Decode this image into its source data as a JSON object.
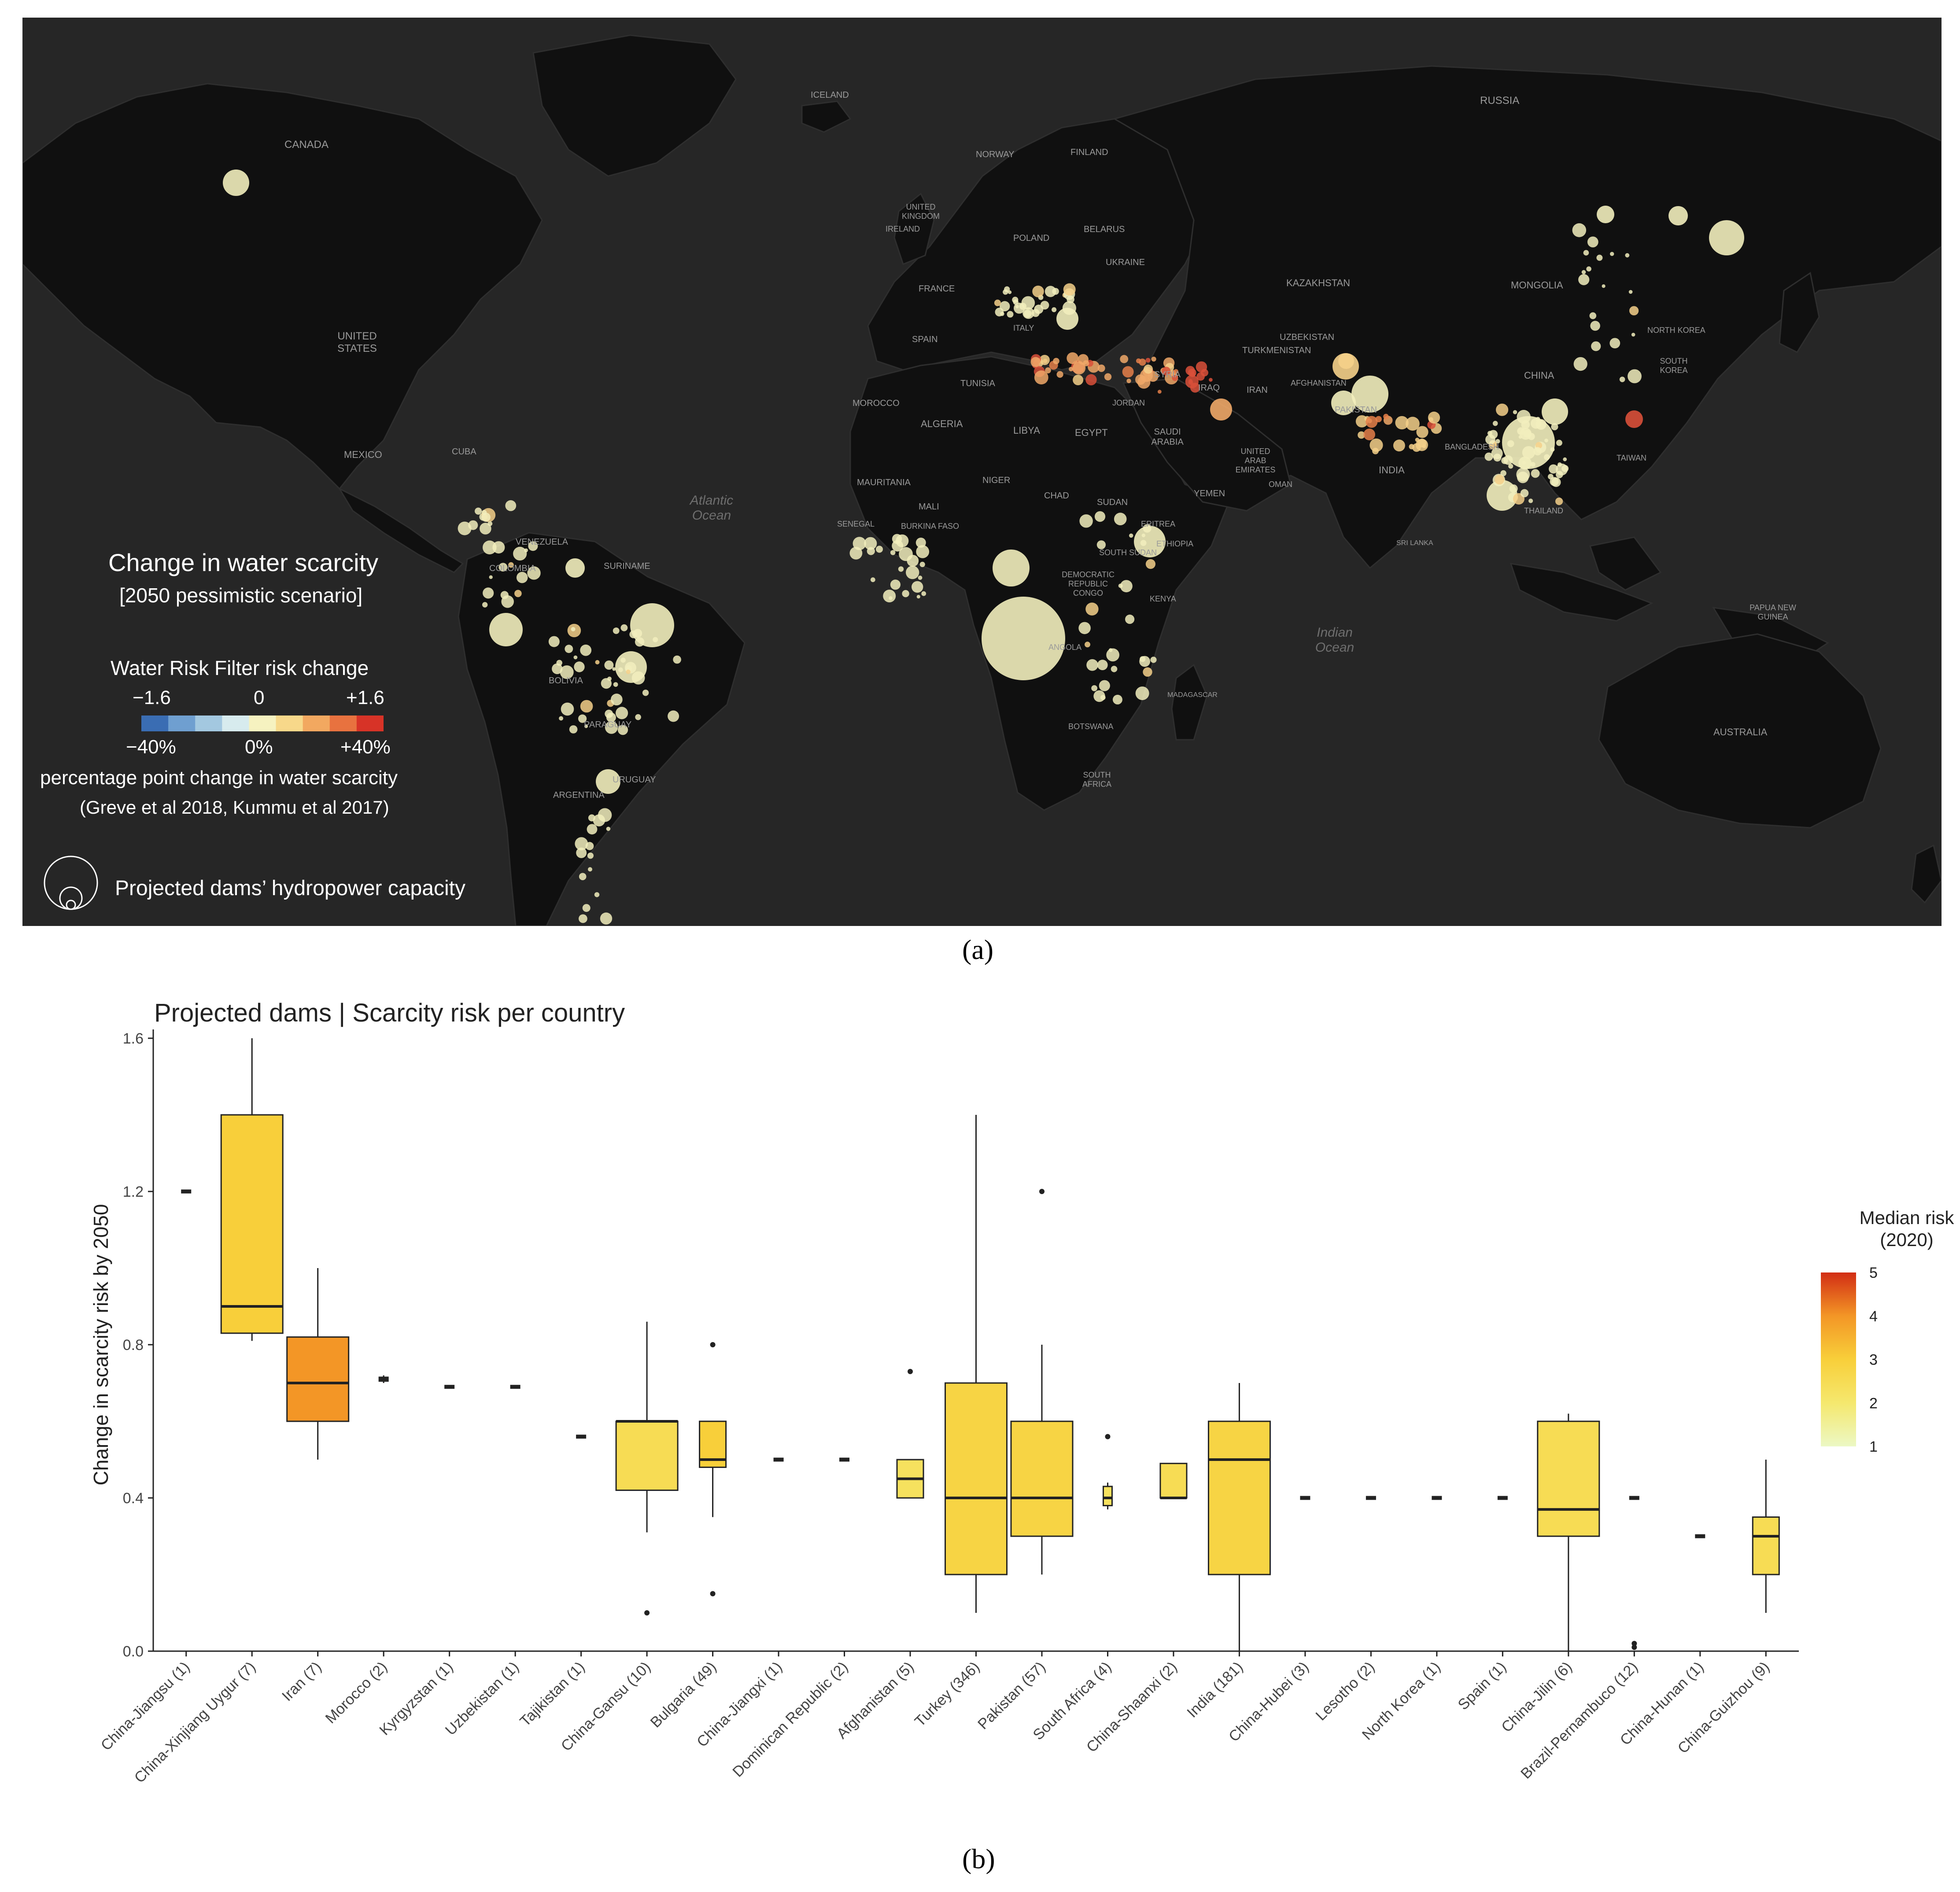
{
  "captions": {
    "a": "(a)",
    "b": "(b)"
  },
  "map": {
    "legend": {
      "title": "Change in water scarcity",
      "subtitle": "[2050 pessimistic scenario]",
      "risk_title": "Water Risk Filter risk change",
      "risk_ticks": [
        "−1.6",
        "0",
        "+1.6"
      ],
      "pct_ticks": [
        "−40%",
        "0%",
        "+40%"
      ],
      "pct_desc": "percentage point change in water scarcity",
      "source": "(Greve et al 2018, Kummu et al 2017)",
      "size_label": "Projected dams’ hydropower capacity",
      "scale_colors": [
        "#3a6db3",
        "#6f9fd0",
        "#a3c8e0",
        "#d7ebee",
        "#f6f2c0",
        "#f7d88a",
        "#f2a860",
        "#e8723f",
        "#d73327"
      ]
    },
    "country_labels": [
      "CANADA",
      "UNITED STATES",
      "MEXICO",
      "CUBA",
      "VENEZUELA",
      "COLOMBIA",
      "SURINAME",
      "BOLIVIA",
      "PARAGUAY",
      "URUGUAY",
      "ARGENTINA",
      "ICELAND",
      "NORWAY",
      "FINLAND",
      "RUSSIA",
      "UNITED KINGDOM",
      "IRELAND",
      "POLAND",
      "BELARUS",
      "UKRAINE",
      "FRANCE",
      "ITALY",
      "SPAIN",
      "KAZAKHSTAN",
      "MONGOLIA",
      "UZBEKISTAN",
      "TURKMENISTAN",
      "SYRIA",
      "IRAQ",
      "IRAN",
      "AFGHANISTAN",
      "PAKISTAN",
      "CHINA",
      "NORTH KOREA",
      "SOUTH KOREA",
      "TUNISIA",
      "MOROCCO",
      "ALGERIA",
      "LIBYA",
      "EGYPT",
      "SAUDI ARABIA",
      "JORDAN",
      "UNITED ARAB EMIRATES",
      "YEMEN",
      "OMAN",
      "INDIA",
      "BANGLADESH",
      "TAIWAN",
      "THAILAND",
      "MAURITANIA",
      "MALI",
      "NIGER",
      "CHAD",
      "SUDAN",
      "ERITREA",
      "BURKINA FASO",
      "SENEGAL",
      "SOUTH SUDAN",
      "ETHIOPIA",
      "DEMOCRATIC REPUBLIC CONGO",
      "KENYA",
      "ANGOLA",
      "BOTSWANA",
      "MADAGASCAR",
      "SOUTH AFRICA",
      "SRI LANKA",
      "PAPUA NEW GUINEA",
      "AUSTRALIA"
    ],
    "ocean_labels": [
      "Atlantic Ocean",
      "Indian Ocean"
    ]
  },
  "chart_data": {
    "type": "boxplot",
    "title": "Projected dams  |  Scarcity risk per country",
    "ylabel": "Change in scarcity risk by 2050",
    "xlabel": "",
    "ylim": [
      0,
      1.6
    ],
    "yticks": [
      "0.0",
      "0.4",
      "0.8",
      "1.2",
      "1.6"
    ],
    "legend": {
      "title_line1": "Median risk",
      "title_line2": "(2020)",
      "ticks": [
        "1",
        "2",
        "3",
        "4",
        "5"
      ],
      "range": [
        1,
        5
      ]
    },
    "categories": [
      "China-Jiangsu (1)",
      "China-Xinjiang Uygur (7)",
      "Iran (7)",
      "Morocco (2)",
      "Kyrgyzstan (1)",
      "Uzbekistan (1)",
      "Tajikistan (1)",
      "China-Gansu (10)",
      "Bulgaria (49)",
      "China-Jiangxi (1)",
      "Dominican Republic (2)",
      "Afghanistan (5)",
      "Turkey (346)",
      "Pakistan (57)",
      "South Africa (4)",
      "China-Shaanxi (2)",
      "India (181)",
      "China-Hubei (3)",
      "Lesotho (2)",
      "North Korea (1)",
      "Spain (1)",
      "China-Jilin (6)",
      "Brazil-Pernambuco (12)",
      "China-Hunan (1)",
      "China-Guizhou (9)"
    ],
    "boxes": [
      {
        "min": 1.2,
        "q1": 1.2,
        "median": 1.2,
        "q3": 1.2,
        "max": 1.2,
        "outliers": [],
        "risk": 2.3
      },
      {
        "min": 0.81,
        "q1": 0.83,
        "median": 0.9,
        "q3": 1.4,
        "max": 1.6,
        "outliers": [],
        "risk": 3.0
      },
      {
        "min": 0.5,
        "q1": 0.6,
        "median": 0.7,
        "q3": 0.82,
        "max": 1.0,
        "outliers": [],
        "risk": 4.0
      },
      {
        "min": 0.7,
        "q1": 0.705,
        "median": 0.71,
        "q3": 0.715,
        "max": 0.72,
        "outliers": [],
        "risk": 2.3
      },
      {
        "min": 0.69,
        "q1": 0.69,
        "median": 0.69,
        "q3": 0.69,
        "max": 0.69,
        "outliers": [],
        "risk": 2.3
      },
      {
        "min": 0.69,
        "q1": 0.69,
        "median": 0.69,
        "q3": 0.69,
        "max": 0.69,
        "outliers": [],
        "risk": 2.3
      },
      {
        "min": 0.56,
        "q1": 0.56,
        "median": 0.56,
        "q3": 0.56,
        "max": 0.56,
        "outliers": [],
        "risk": 2.3
      },
      {
        "min": 0.31,
        "q1": 0.42,
        "median": 0.6,
        "q3": 0.6,
        "max": 0.86,
        "outliers": [
          0.1
        ],
        "risk": 2.5
      },
      {
        "min": 0.35,
        "q1": 0.48,
        "median": 0.5,
        "q3": 0.6,
        "max": 0.6,
        "outliers": [
          0.8,
          0.15
        ],
        "risk": 3.0
      },
      {
        "min": 0.5,
        "q1": 0.5,
        "median": 0.5,
        "q3": 0.5,
        "max": 0.5,
        "outliers": [],
        "risk": 2.3
      },
      {
        "min": 0.5,
        "q1": 0.5,
        "median": 0.5,
        "q3": 0.5,
        "max": 0.5,
        "outliers": [],
        "risk": 2.3
      },
      {
        "min": 0.4,
        "q1": 0.4,
        "median": 0.45,
        "q3": 0.5,
        "max": 0.5,
        "outliers": [
          0.73
        ],
        "risk": 2.3
      },
      {
        "min": 0.1,
        "q1": 0.2,
        "median": 0.4,
        "q3": 0.7,
        "max": 1.4,
        "outliers": [],
        "risk": 2.8
      },
      {
        "min": 0.2,
        "q1": 0.3,
        "median": 0.4,
        "q3": 0.6,
        "max": 0.8,
        "outliers": [
          1.2
        ],
        "risk": 2.8
      },
      {
        "min": 0.37,
        "q1": 0.38,
        "median": 0.4,
        "q3": 0.43,
        "max": 0.44,
        "outliers": [
          0.56
        ],
        "risk": 2.3
      },
      {
        "min": 0.4,
        "q1": 0.4,
        "median": 0.4,
        "q3": 0.49,
        "max": 0.49,
        "outliers": [],
        "risk": 2.5
      },
      {
        "min": 0.0,
        "q1": 0.2,
        "median": 0.5,
        "q3": 0.6,
        "max": 0.7,
        "outliers": [],
        "risk": 2.8
      },
      {
        "min": 0.4,
        "q1": 0.4,
        "median": 0.4,
        "q3": 0.4,
        "max": 0.4,
        "outliers": [],
        "risk": 2.3
      },
      {
        "min": 0.4,
        "q1": 0.4,
        "median": 0.4,
        "q3": 0.4,
        "max": 0.4,
        "outliers": [],
        "risk": 2.3
      },
      {
        "min": 0.4,
        "q1": 0.4,
        "median": 0.4,
        "q3": 0.4,
        "max": 0.4,
        "outliers": [],
        "risk": 2.3
      },
      {
        "min": 0.4,
        "q1": 0.4,
        "median": 0.4,
        "q3": 0.4,
        "max": 0.4,
        "outliers": [],
        "risk": 2.3
      },
      {
        "min": 0.0,
        "q1": 0.3,
        "median": 0.37,
        "q3": 0.6,
        "max": 0.62,
        "outliers": [],
        "risk": 2.5
      },
      {
        "min": 0.4,
        "q1": 0.4,
        "median": 0.4,
        "q3": 0.4,
        "max": 0.4,
        "outliers": [
          0.02,
          0.01
        ],
        "risk": 2.3
      },
      {
        "min": 0.3,
        "q1": 0.3,
        "median": 0.3,
        "q3": 0.3,
        "max": 0.3,
        "outliers": [],
        "risk": 2.3
      },
      {
        "min": 0.1,
        "q1": 0.2,
        "median": 0.3,
        "q3": 0.35,
        "max": 0.5,
        "outliers": [],
        "risk": 2.5
      }
    ]
  }
}
